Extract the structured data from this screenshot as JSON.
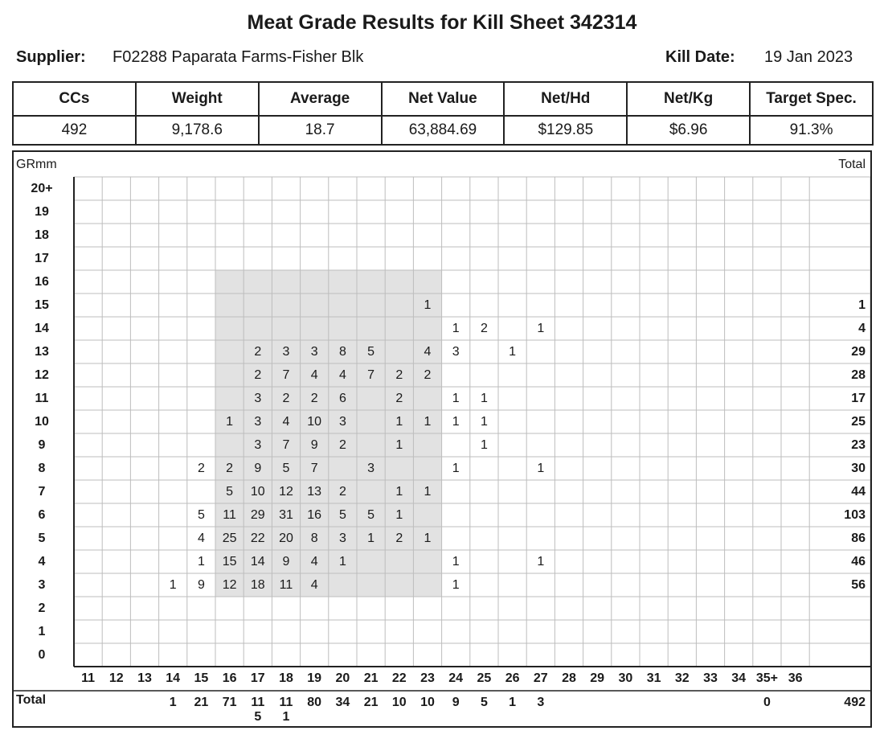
{
  "title": "Meat Grade Results for Kill Sheet 342314",
  "supplier": {
    "label": "Supplier:",
    "value": "F02288 Paparata Farms-Fisher Blk"
  },
  "kill_date": {
    "label": "Kill Date:",
    "value": "19 Jan 2023"
  },
  "summary": {
    "headers": [
      "CCs",
      "Weight",
      "Average",
      "Net Value",
      "Net/Hd",
      "Net/Kg",
      "Target Spec."
    ],
    "values": [
      "492",
      "9,178.6",
      "18.7",
      "63,884.69",
      "$129.85",
      "$6.96",
      "91.3%"
    ]
  },
  "grid": {
    "row_axis_label": "GRmm",
    "total_label": "Total",
    "rows": [
      "20+",
      "19",
      "18",
      "17",
      "16",
      "15",
      "14",
      "13",
      "12",
      "11",
      "10",
      "9",
      "8",
      "7",
      "6",
      "5",
      "4",
      "3",
      "2",
      "1",
      "0"
    ],
    "columns": [
      "11",
      "12",
      "13",
      "14",
      "15",
      "16",
      "17",
      "18",
      "19",
      "20",
      "21",
      "22",
      "23",
      "24",
      "25",
      "26",
      "27",
      "28",
      "29",
      "30",
      "31",
      "32",
      "33",
      "34",
      "35+",
      "36"
    ],
    "cells": [
      {
        "row": "15",
        "col": "23",
        "value": "1"
      },
      {
        "row": "14",
        "col": "24",
        "value": "1"
      },
      {
        "row": "14",
        "col": "25",
        "value": "2"
      },
      {
        "row": "14",
        "col": "27",
        "value": "1"
      },
      {
        "row": "13",
        "col": "17",
        "value": "2"
      },
      {
        "row": "13",
        "col": "18",
        "value": "3"
      },
      {
        "row": "13",
        "col": "19",
        "value": "3"
      },
      {
        "row": "13",
        "col": "20",
        "value": "8"
      },
      {
        "row": "13",
        "col": "21",
        "value": "5"
      },
      {
        "row": "13",
        "col": "23",
        "value": "4"
      },
      {
        "row": "13",
        "col": "24",
        "value": "3"
      },
      {
        "row": "13",
        "col": "26",
        "value": "1"
      },
      {
        "row": "12",
        "col": "17",
        "value": "2"
      },
      {
        "row": "12",
        "col": "18",
        "value": "7"
      },
      {
        "row": "12",
        "col": "19",
        "value": "4"
      },
      {
        "row": "12",
        "col": "20",
        "value": "4"
      },
      {
        "row": "12",
        "col": "21",
        "value": "7"
      },
      {
        "row": "12",
        "col": "22",
        "value": "2"
      },
      {
        "row": "12",
        "col": "23",
        "value": "2"
      },
      {
        "row": "11",
        "col": "17",
        "value": "3"
      },
      {
        "row": "11",
        "col": "18",
        "value": "2"
      },
      {
        "row": "11",
        "col": "19",
        "value": "2"
      },
      {
        "row": "11",
        "col": "20",
        "value": "6"
      },
      {
        "row": "11",
        "col": "22",
        "value": "2"
      },
      {
        "row": "11",
        "col": "24",
        "value": "1"
      },
      {
        "row": "11",
        "col": "25",
        "value": "1"
      },
      {
        "row": "10",
        "col": "16",
        "value": "1"
      },
      {
        "row": "10",
        "col": "17",
        "value": "3"
      },
      {
        "row": "10",
        "col": "18",
        "value": "4"
      },
      {
        "row": "10",
        "col": "19",
        "value": "10"
      },
      {
        "row": "10",
        "col": "20",
        "value": "3"
      },
      {
        "row": "10",
        "col": "22",
        "value": "1"
      },
      {
        "row": "10",
        "col": "23",
        "value": "1"
      },
      {
        "row": "10",
        "col": "24",
        "value": "1"
      },
      {
        "row": "10",
        "col": "25",
        "value": "1"
      },
      {
        "row": "9",
        "col": "17",
        "value": "3"
      },
      {
        "row": "9",
        "col": "18",
        "value": "7"
      },
      {
        "row": "9",
        "col": "19",
        "value": "9"
      },
      {
        "row": "9",
        "col": "20",
        "value": "2"
      },
      {
        "row": "9",
        "col": "22",
        "value": "1"
      },
      {
        "row": "9",
        "col": "25",
        "value": "1"
      },
      {
        "row": "8",
        "col": "15",
        "value": "2"
      },
      {
        "row": "8",
        "col": "16",
        "value": "2"
      },
      {
        "row": "8",
        "col": "17",
        "value": "9"
      },
      {
        "row": "8",
        "col": "18",
        "value": "5"
      },
      {
        "row": "8",
        "col": "19",
        "value": "7"
      },
      {
        "row": "8",
        "col": "21",
        "value": "3"
      },
      {
        "row": "8",
        "col": "24",
        "value": "1"
      },
      {
        "row": "8",
        "col": "27",
        "value": "1"
      },
      {
        "row": "7",
        "col": "16",
        "value": "5"
      },
      {
        "row": "7",
        "col": "17",
        "value": "10"
      },
      {
        "row": "7",
        "col": "18",
        "value": "12"
      },
      {
        "row": "7",
        "col": "19",
        "value": "13"
      },
      {
        "row": "7",
        "col": "20",
        "value": "2"
      },
      {
        "row": "7",
        "col": "22",
        "value": "1"
      },
      {
        "row": "7",
        "col": "23",
        "value": "1"
      },
      {
        "row": "6",
        "col": "15",
        "value": "5"
      },
      {
        "row": "6",
        "col": "16",
        "value": "11"
      },
      {
        "row": "6",
        "col": "17",
        "value": "29"
      },
      {
        "row": "6",
        "col": "18",
        "value": "31"
      },
      {
        "row": "6",
        "col": "19",
        "value": "16"
      },
      {
        "row": "6",
        "col": "20",
        "value": "5"
      },
      {
        "row": "6",
        "col": "21",
        "value": "5"
      },
      {
        "row": "6",
        "col": "22",
        "value": "1"
      },
      {
        "row": "5",
        "col": "15",
        "value": "4"
      },
      {
        "row": "5",
        "col": "16",
        "value": "25"
      },
      {
        "row": "5",
        "col": "17",
        "value": "22"
      },
      {
        "row": "5",
        "col": "18",
        "value": "20"
      },
      {
        "row": "5",
        "col": "19",
        "value": "8"
      },
      {
        "row": "5",
        "col": "20",
        "value": "3"
      },
      {
        "row": "5",
        "col": "21",
        "value": "1"
      },
      {
        "row": "5",
        "col": "22",
        "value": "2"
      },
      {
        "row": "5",
        "col": "23",
        "value": "1"
      },
      {
        "row": "4",
        "col": "15",
        "value": "1"
      },
      {
        "row": "4",
        "col": "16",
        "value": "15"
      },
      {
        "row": "4",
        "col": "17",
        "value": "14"
      },
      {
        "row": "4",
        "col": "18",
        "value": "9"
      },
      {
        "row": "4",
        "col": "19",
        "value": "4"
      },
      {
        "row": "4",
        "col": "20",
        "value": "1"
      },
      {
        "row": "4",
        "col": "24",
        "value": "1"
      },
      {
        "row": "4",
        "col": "27",
        "value": "1"
      },
      {
        "row": "3",
        "col": "14",
        "value": "1"
      },
      {
        "row": "3",
        "col": "15",
        "value": "9"
      },
      {
        "row": "3",
        "col": "16",
        "value": "12"
      },
      {
        "row": "3",
        "col": "17",
        "value": "18"
      },
      {
        "row": "3",
        "col": "18",
        "value": "11"
      },
      {
        "row": "3",
        "col": "19",
        "value": "4"
      },
      {
        "row": "3",
        "col": "24",
        "value": "1"
      }
    ],
    "row_totals": [
      {
        "row": "15",
        "value": "1"
      },
      {
        "row": "14",
        "value": "4"
      },
      {
        "row": "13",
        "value": "29"
      },
      {
        "row": "12",
        "value": "28"
      },
      {
        "row": "11",
        "value": "17"
      },
      {
        "row": "10",
        "value": "25"
      },
      {
        "row": "9",
        "value": "23"
      },
      {
        "row": "8",
        "value": "30"
      },
      {
        "row": "7",
        "value": "44"
      },
      {
        "row": "6",
        "value": "103"
      },
      {
        "row": "5",
        "value": "86"
      },
      {
        "row": "4",
        "value": "46"
      },
      {
        "row": "3",
        "value": "56"
      }
    ],
    "col_totals": [
      {
        "col": "14",
        "value": "1"
      },
      {
        "col": "15",
        "value": "21"
      },
      {
        "col": "16",
        "value": "71"
      },
      {
        "col": "17",
        "value": "115"
      },
      {
        "col": "18",
        "value": "111"
      },
      {
        "col": "19",
        "value": "80"
      },
      {
        "col": "20",
        "value": "34"
      },
      {
        "col": "21",
        "value": "21"
      },
      {
        "col": "22",
        "value": "10"
      },
      {
        "col": "23",
        "value": "10"
      },
      {
        "col": "24",
        "value": "9"
      },
      {
        "col": "25",
        "value": "5"
      },
      {
        "col": "26",
        "value": "1"
      },
      {
        "col": "27",
        "value": "3"
      },
      {
        "col": "35+",
        "value": "0"
      }
    ],
    "grand_total": "492",
    "highlight": {
      "rows": [
        "16",
        "3"
      ],
      "cols": [
        "16",
        "23"
      ],
      "color": "#e2e2e2"
    }
  }
}
